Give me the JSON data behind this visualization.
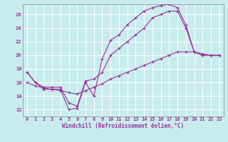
{
  "xlabel": "Windchill (Refroidissement éolien,°C)",
  "bg_color": "#c8ecec",
  "line_color": "#993399",
  "grid_color": "#ffffff",
  "xlim": [
    -0.5,
    23.5
  ],
  "ylim": [
    11,
    27.5
  ],
  "xticks": [
    0,
    1,
    2,
    3,
    4,
    5,
    6,
    7,
    8,
    9,
    10,
    11,
    12,
    13,
    14,
    15,
    16,
    17,
    18,
    19,
    20,
    21,
    22,
    23
  ],
  "yticks": [
    12,
    14,
    16,
    18,
    20,
    22,
    24,
    26
  ],
  "series": [
    {
      "x": [
        0,
        1,
        2,
        3,
        4,
        5,
        6,
        7,
        8,
        9,
        10,
        11,
        12,
        13,
        14,
        15,
        16,
        17,
        18,
        19,
        20,
        21,
        22,
        23
      ],
      "y": [
        17.5,
        16.0,
        15.0,
        15.0,
        15.0,
        12.0,
        12.2,
        16.0,
        14.0,
        19.5,
        22.2,
        23.0,
        24.5,
        25.5,
        26.5,
        27.0,
        27.3,
        27.5,
        27.0,
        24.5,
        20.5,
        20.0,
        20.0,
        20.0
      ]
    },
    {
      "x": [
        0,
        1,
        2,
        3,
        4,
        5,
        6,
        7,
        8,
        9,
        10,
        11,
        12,
        13,
        14,
        15,
        16,
        17,
        18,
        19,
        20,
        21,
        22,
        23
      ],
      "y": [
        17.5,
        16.0,
        15.3,
        15.3,
        15.3,
        13.0,
        12.5,
        16.2,
        16.5,
        17.5,
        20.0,
        21.0,
        22.0,
        23.0,
        24.0,
        25.5,
        26.0,
        26.5,
        26.5,
        24.0,
        20.5,
        20.0,
        20.0,
        20.0
      ]
    },
    {
      "x": [
        0,
        1,
        2,
        3,
        4,
        5,
        6,
        7,
        8,
        9,
        10,
        11,
        12,
        13,
        14,
        15,
        16,
        17,
        18,
        19,
        20,
        21,
        22,
        23
      ],
      "y": [
        16.0,
        15.5,
        15.2,
        15.0,
        14.8,
        14.5,
        14.3,
        14.8,
        15.3,
        15.8,
        16.5,
        17.0,
        17.5,
        18.0,
        18.5,
        19.0,
        19.5,
        20.0,
        20.5,
        20.5,
        20.5,
        20.2,
        20.0,
        20.0
      ]
    }
  ]
}
